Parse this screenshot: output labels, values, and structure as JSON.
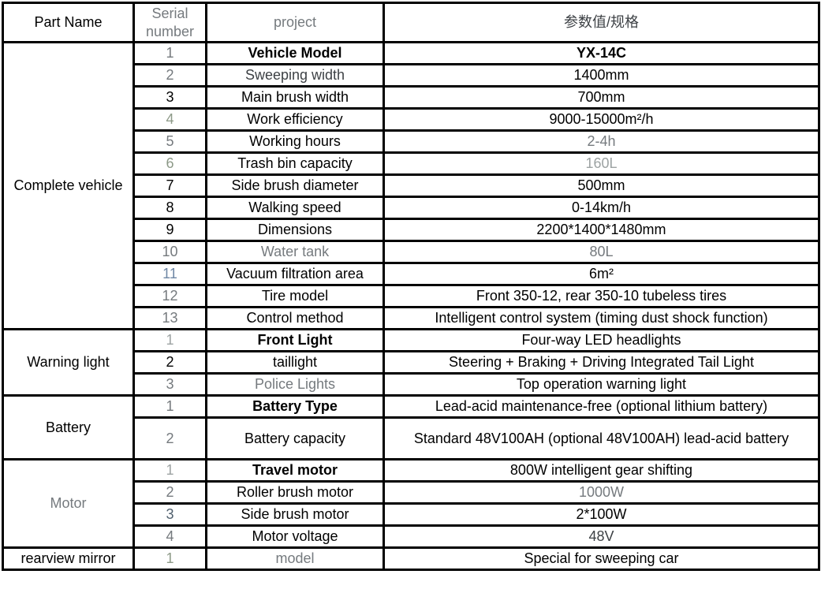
{
  "palette": {
    "black": "#000000",
    "dark": "#3d4145",
    "gray": "#757a7e",
    "light": "#9da3a3",
    "green": "#8d9a88",
    "bluegray": "#6f87a5",
    "slate": "#50606e"
  },
  "header": {
    "part_name": "Part Name",
    "serial": "Serial number",
    "project": "project",
    "value": "参数值/规格"
  },
  "sections": [
    {
      "name": "Complete vehicle",
      "tone": "black",
      "rows": [
        {
          "serial": "1",
          "serial_tone": "gray",
          "project": "Vehicle Model",
          "project_tone": "black",
          "project_bold": true,
          "value": "YX-14C",
          "value_tone": "black",
          "value_bold": true
        },
        {
          "serial": "2",
          "serial_tone": "gray",
          "project": "Sweeping width",
          "project_tone": "dark",
          "value": "1400mm",
          "value_tone": "black"
        },
        {
          "serial": "3",
          "serial_tone": "black",
          "project": "Main brush width",
          "project_tone": "black",
          "value": "700mm",
          "value_tone": "black"
        },
        {
          "serial": "4",
          "serial_tone": "green",
          "project": "Work efficiency",
          "project_tone": "black",
          "value": "9000-15000m²/h",
          "value_tone": "black"
        },
        {
          "serial": "5",
          "serial_tone": "gray",
          "project": "Working hours",
          "project_tone": "black",
          "value": "2-4h",
          "value_tone": "gray"
        },
        {
          "serial": "6",
          "serial_tone": "green",
          "project": "Trash bin capacity",
          "project_tone": "black",
          "value": "160L",
          "value_tone": "light"
        },
        {
          "serial": "7",
          "serial_tone": "black",
          "project": "Side brush diameter",
          "project_tone": "black",
          "value": "500mm",
          "value_tone": "black"
        },
        {
          "serial": "8",
          "serial_tone": "black",
          "project": "Walking speed",
          "project_tone": "black",
          "value": "0-14km/h",
          "value_tone": "black"
        },
        {
          "serial": "9",
          "serial_tone": "black",
          "project": "Dimensions",
          "project_tone": "black",
          "value": "2200*1400*1480mm",
          "value_tone": "black"
        },
        {
          "serial": "10",
          "serial_tone": "gray",
          "project": "Water tank",
          "project_tone": "gray",
          "value": "80L",
          "value_tone": "gray"
        },
        {
          "serial": "11",
          "serial_tone": "bluegray",
          "project": "Vacuum filtration area",
          "project_tone": "black",
          "value": "6m²",
          "value_tone": "black"
        },
        {
          "serial": "12",
          "serial_tone": "gray",
          "project": "Tire model",
          "project_tone": "black",
          "value": "Front 350-12, rear 350-10 tubeless tires",
          "value_tone": "black"
        },
        {
          "serial": "13",
          "serial_tone": "gray",
          "project": "Control method",
          "project_tone": "black",
          "value": "Intelligent control system (timing dust shock function)",
          "value_tone": "black"
        }
      ]
    },
    {
      "name": "Warning light",
      "tone": "black",
      "rows": [
        {
          "serial": "1",
          "serial_tone": "light",
          "project": "Front Light",
          "project_tone": "black",
          "project_bold": true,
          "value": "Four-way LED headlights",
          "value_tone": "black"
        },
        {
          "serial": "2",
          "serial_tone": "black",
          "project": "taillight",
          "project_tone": "black",
          "value": "Steering + Braking + Driving Integrated Tail Light",
          "value_tone": "black"
        },
        {
          "serial": "3",
          "serial_tone": "gray",
          "project": "Police Lights",
          "project_tone": "gray",
          "value": "Top operation warning light",
          "value_tone": "black"
        }
      ]
    },
    {
      "name": "Battery",
      "tone": "black",
      "rows": [
        {
          "serial": "1",
          "serial_tone": "gray",
          "project": "Battery Type",
          "project_tone": "black",
          "project_bold": true,
          "value": "Lead-acid maintenance-free (optional lithium battery)",
          "value_tone": "black"
        },
        {
          "serial": "2",
          "serial_tone": "gray",
          "project": "Battery capacity",
          "project_tone": "black",
          "value": "Standard 48V100AH (optional 48V100AH) lead-acid battery",
          "value_tone": "black",
          "tall": true,
          "wrap": true
        }
      ]
    },
    {
      "name": "Motor",
      "tone": "gray",
      "rows": [
        {
          "serial": "1",
          "serial_tone": "light",
          "project": "Travel motor",
          "project_tone": "black",
          "project_bold": true,
          "value": "800W intelligent gear shifting",
          "value_tone": "black"
        },
        {
          "serial": "2",
          "serial_tone": "gray",
          "project": "Roller brush motor",
          "project_tone": "black",
          "value": "1000W",
          "value_tone": "gray"
        },
        {
          "serial": "3",
          "serial_tone": "slate",
          "project": "Side brush motor",
          "project_tone": "black",
          "value": "2*100W",
          "value_tone": "black"
        },
        {
          "serial": "4",
          "serial_tone": "gray",
          "project": "Motor voltage",
          "project_tone": "black",
          "value": "48V",
          "value_tone": "dark"
        }
      ]
    },
    {
      "name": "rearview mirror",
      "tone": "black",
      "rows": [
        {
          "serial": "1",
          "serial_tone": "green",
          "project": "model",
          "project_tone": "gray",
          "value": "Special for sweeping car",
          "value_tone": "black"
        }
      ]
    }
  ]
}
